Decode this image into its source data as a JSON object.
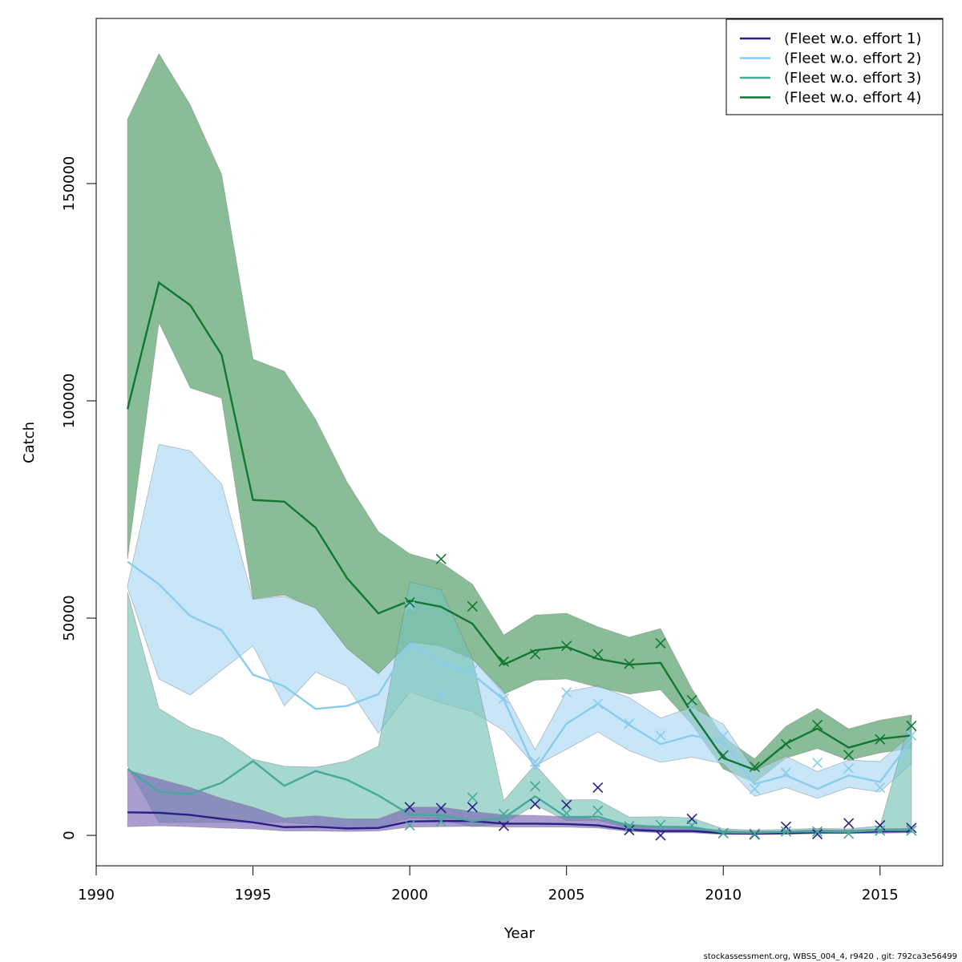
{
  "chart_data": {
    "type": "line",
    "title": "",
    "xlabel": "Year",
    "ylabel": "Catch",
    "xlim": [
      1990,
      2017
    ],
    "ylim": [
      -7000,
      188000
    ],
    "x_ticks": [
      1990,
      1995,
      2000,
      2005,
      2010,
      2015
    ],
    "x_tick_labels": [
      "1990",
      "1995",
      "2000",
      "2005",
      "2010",
      "2015"
    ],
    "y_ticks": [
      0,
      50000,
      100000,
      150000
    ],
    "y_tick_labels": [
      "0",
      "50000",
      "100000",
      "150000"
    ],
    "grid": false,
    "legend_position": "top-right",
    "x": [
      1991,
      1992,
      1993,
      1994,
      1995,
      1996,
      1997,
      1998,
      1999,
      2000,
      2001,
      2002,
      2003,
      2004,
      2005,
      2006,
      2007,
      2008,
      2009,
      2010,
      2011,
      2012,
      2013,
      2014,
      2015,
      2016
    ],
    "series": [
      {
        "name": "(Fleet w.o. effort 1)",
        "color": "#2b1f87",
        "band_color": "#7b67b5",
        "values": [
          5300,
          5200,
          4700,
          3800,
          3000,
          1900,
          2000,
          1600,
          1700,
          3200,
          3300,
          3300,
          2700,
          2700,
          2600,
          2300,
          1300,
          1000,
          1000,
          500,
          400,
          500,
          700,
          700,
          900,
          1000
        ],
        "lower": [
          2000,
          2200,
          2000,
          1700,
          1500,
          1000,
          1000,
          900,
          1000,
          1900,
          2000,
          2100,
          1900,
          1900,
          1900,
          1700,
          900,
          600,
          600,
          200,
          200,
          250,
          400,
          400,
          500,
          600
        ],
        "upper": [
          15000,
          13000,
          11000,
          8500,
          6500,
          4000,
          4500,
          3800,
          3800,
          6500,
          6500,
          5500,
          4700,
          4600,
          4300,
          3800,
          2600,
          2000,
          1900,
          1100,
          900,
          1000,
          1300,
          1200,
          1500,
          1600
        ],
        "observed_x": [
          2000,
          2001,
          2002,
          2003,
          2004,
          2005,
          2006,
          2007,
          2008,
          2009,
          2010,
          2011,
          2012,
          2013,
          2014,
          2015,
          2016
        ],
        "observed": [
          6500,
          6300,
          6500,
          2200,
          7200,
          7000,
          11000,
          1200,
          0,
          3800,
          500,
          200,
          2000,
          300,
          2800,
          2300,
          1700
        ]
      },
      {
        "name": "(Fleet w.o. effort 2)",
        "color": "#88ccee",
        "band_color": "#aad8f2",
        "values": [
          63000,
          57800,
          50500,
          47200,
          37000,
          34300,
          29100,
          29800,
          32500,
          44000,
          39600,
          37100,
          31200,
          15200,
          25700,
          30300,
          25400,
          21000,
          23000,
          21500,
          11800,
          13800,
          10700,
          13800,
          12300,
          21900
        ],
        "lower": [
          57000,
          36000,
          32300,
          38000,
          43600,
          29800,
          37600,
          34300,
          23500,
          33000,
          30500,
          28500,
          24100,
          16000,
          19800,
          23800,
          19500,
          16800,
          18000,
          16500,
          9000,
          11000,
          8500,
          11000,
          10000,
          16500
        ],
        "upper": [
          57500,
          90000,
          88500,
          80900,
          54300,
          55000,
          52400,
          43000,
          37200,
          44600,
          43600,
          40600,
          33200,
          19700,
          33100,
          34400,
          31700,
          27000,
          29500,
          25600,
          14900,
          18200,
          14700,
          17300,
          17000,
          23300
        ],
        "observed_x": [
          2000,
          2001,
          2002,
          2003,
          2004,
          2005,
          2006,
          2007,
          2008,
          2009,
          2010,
          2011,
          2012,
          2013,
          2014,
          2015,
          2016
        ],
        "observed": [
          52700,
          32400,
          38000,
          31500,
          16900,
          32900,
          30300,
          25700,
          23000,
          29900,
          22900,
          10700,
          14400,
          16700,
          15400,
          11000,
          23000
        ]
      },
      {
        "name": "(Fleet w.o. effort 3)",
        "color": "#44aa99",
        "band_color": "#76c3b7",
        "values": [
          15300,
          10100,
          9500,
          12100,
          17100,
          11400,
          14800,
          12800,
          9200,
          4800,
          4600,
          3300,
          4000,
          9000,
          4200,
          4300,
          2200,
          2000,
          1900,
          700,
          600,
          800,
          900,
          800,
          1200,
          1200
        ],
        "lower": [
          16000,
          3000,
          3000,
          3000,
          3000,
          3000,
          2500,
          2000,
          2000,
          4000,
          3600,
          2000,
          2700,
          7000,
          3400,
          3500,
          1600,
          1400,
          1400,
          400,
          400,
          500,
          600,
          500,
          800,
          800
        ],
        "upper": [
          56000,
          29200,
          24800,
          22500,
          17500,
          15900,
          15700,
          17100,
          20500,
          58300,
          56600,
          40600,
          8000,
          16300,
          8200,
          8200,
          4200,
          4300,
          4000,
          1500,
          1200,
          1400,
          1600,
          1500,
          2200,
          27700
        ],
        "observed_x": [
          2000,
          2001,
          2002,
          2003,
          2004,
          2005,
          2006,
          2007,
          2008,
          2009,
          2010,
          2011,
          2012,
          2013,
          2014,
          2015,
          2016
        ],
        "observed": [
          2300,
          3300,
          8700,
          4900,
          11300,
          5100,
          5700,
          2100,
          2400,
          2300,
          500,
          400,
          900,
          900,
          400,
          1100,
          1100
        ]
      },
      {
        "name": "(Fleet w.o. effort 4)",
        "color": "#117733",
        "band_color": "#4a9a5f",
        "values": [
          98100,
          127200,
          122000,
          110600,
          77200,
          76800,
          70800,
          59200,
          51100,
          54000,
          52600,
          48700,
          39300,
          42600,
          43400,
          40600,
          39300,
          39700,
          28100,
          17800,
          15100,
          21100,
          24600,
          20200,
          22200,
          23000
        ],
        "lower": [
          63600,
          118000,
          103000,
          100600,
          54400,
          55300,
          52200,
          43100,
          37200,
          44400,
          43600,
          40600,
          32500,
          35700,
          36000,
          34100,
          32500,
          33500,
          25500,
          15300,
          12100,
          17800,
          20000,
          17300,
          19000,
          20000
        ],
        "upper": [
          164800,
          179900,
          168100,
          152100,
          109600,
          106800,
          95700,
          81300,
          69900,
          64800,
          62800,
          57800,
          46100,
          50700,
          51100,
          48000,
          45600,
          47600,
          33700,
          22600,
          17600,
          25100,
          29200,
          24500,
          26500,
          27700
        ],
        "observed_x": [
          2000,
          2001,
          2002,
          2003,
          2004,
          2005,
          2006,
          2007,
          2008,
          2009,
          2010,
          2011,
          2012,
          2013,
          2014,
          2015,
          2016
        ],
        "observed": [
          53600,
          63600,
          52700,
          40000,
          41700,
          43600,
          41700,
          39500,
          44200,
          31100,
          18400,
          15800,
          21000,
          25400,
          18500,
          22100,
          25200
        ]
      }
    ]
  },
  "footer": "stockassessment.org, WBSS_004_4, r9420 , git: 792ca3e56499"
}
